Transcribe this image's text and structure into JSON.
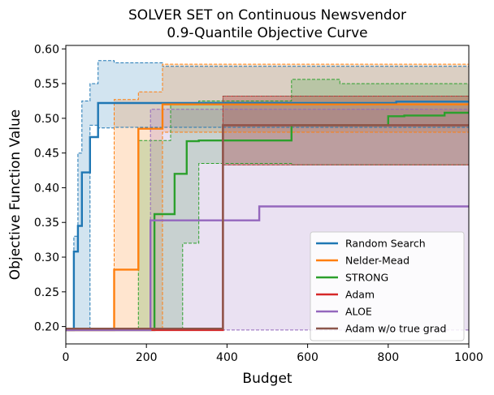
{
  "chart_data": {
    "type": "line",
    "title": "SOLVER SET on Continuous Newsvendor",
    "subtitle": "0.9-Quantile Objective Curve",
    "xlabel": "Budget",
    "ylabel": "Objective Function Value",
    "xlim": [
      0,
      1000
    ],
    "ylim": [
      0.175,
      0.605
    ],
    "xticks": [
      0,
      200,
      400,
      600,
      800,
      1000
    ],
    "xtick_labels": [
      "0",
      "200",
      "400",
      "600",
      "800",
      "1000"
    ],
    "yticks": [
      0.2,
      0.25,
      0.3,
      0.35,
      0.4,
      0.45,
      0.5,
      0.55,
      0.6
    ],
    "ytick_labels": [
      "0.20",
      "0.25",
      "0.30",
      "0.35",
      "0.40",
      "0.45",
      "0.50",
      "0.55",
      "0.60"
    ],
    "grid": false,
    "legend_position": "lower-right",
    "series": [
      {
        "name": "Random Search",
        "color": "#1f77b4",
        "x": [
          0,
          20,
          30,
          40,
          60,
          80,
          820,
          1000
        ],
        "y": [
          0.195,
          0.308,
          0.345,
          0.422,
          0.473,
          0.522,
          0.524,
          0.524
        ],
        "band_lower_x": [
          0,
          30,
          60,
          80,
          120,
          1000
        ],
        "band_lower": [
          0.195,
          0.195,
          0.49,
          0.486,
          0.487,
          0.487
        ],
        "band_upper_x": [
          0,
          20,
          30,
          40,
          60,
          80,
          120,
          240,
          1000
        ],
        "band_upper": [
          0.195,
          0.33,
          0.45,
          0.525,
          0.55,
          0.583,
          0.58,
          0.575,
          0.575
        ]
      },
      {
        "name": "Nelder-Mead",
        "color": "#ff7f0e",
        "x": [
          0,
          120,
          180,
          240,
          1000
        ],
        "y": [
          0.195,
          0.282,
          0.485,
          0.52,
          0.52
        ],
        "band_lower_x": [
          0,
          200,
          240,
          1000
        ],
        "band_lower": [
          0.195,
          0.195,
          0.48,
          0.48
        ],
        "band_upper_x": [
          0,
          120,
          180,
          240,
          1000
        ],
        "band_upper": [
          0.195,
          0.527,
          0.538,
          0.578,
          0.575
        ]
      },
      {
        "name": "STRONG",
        "color": "#2ca02c",
        "x": [
          0,
          220,
          270,
          300,
          330,
          560,
          800,
          840,
          940,
          1000
        ],
        "y": [
          0.195,
          0.362,
          0.42,
          0.467,
          0.468,
          0.49,
          0.503,
          0.504,
          0.508,
          0.508
        ],
        "band_lower_x": [
          0,
          260,
          290,
          330,
          560,
          1000
        ],
        "band_lower": [
          0.195,
          0.195,
          0.32,
          0.435,
          0.433,
          0.433
        ],
        "band_upper_x": [
          0,
          180,
          260,
          330,
          560,
          680,
          1000
        ],
        "band_upper": [
          0.195,
          0.468,
          0.52,
          0.525,
          0.556,
          0.55,
          0.55
        ]
      },
      {
        "name": "Adam",
        "color": "#d62728",
        "x": [
          0,
          390,
          1000
        ],
        "y": [
          0.195,
          0.49,
          0.49
        ],
        "band_lower_x": [
          0,
          390,
          1000
        ],
        "band_lower": [
          0.195,
          0.433,
          0.433
        ],
        "band_upper_x": [
          0,
          390,
          1000
        ],
        "band_upper": [
          0.195,
          0.532,
          0.532
        ]
      },
      {
        "name": "ALOE",
        "color": "#9467bd",
        "x": [
          0,
          210,
          480,
          1000
        ],
        "y": [
          0.195,
          0.353,
          0.373,
          0.373
        ],
        "band_lower_x": [
          0,
          1000
        ],
        "band_lower": [
          0.195,
          0.195
        ],
        "band_upper_x": [
          0,
          210,
          1000
        ],
        "band_upper": [
          0.195,
          0.513,
          0.513
        ]
      },
      {
        "name": "Adam w/o true grad",
        "color": "#8c564b",
        "x": [
          0,
          390,
          1000
        ],
        "y": [
          0.197,
          0.49,
          0.49
        ],
        "band_lower_x": [
          0,
          390,
          1000
        ],
        "band_lower": [
          0.197,
          0.433,
          0.433
        ],
        "band_upper_x": [
          0,
          390,
          1000
        ],
        "band_upper": [
          0.197,
          0.532,
          0.532
        ]
      }
    ]
  }
}
